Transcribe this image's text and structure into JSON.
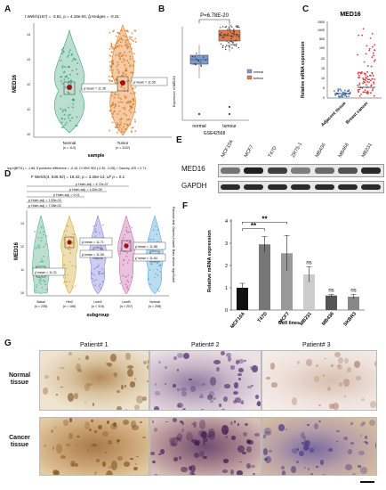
{
  "panels": {
    "A": {
      "letter": "A",
      "stat_text": "t Welch(157) = -3.61, p = 4.18e-04, ĝ Hedges = -0.31",
      "footer_text": "log e(BF01) = -1.66, δ̂ posterior difference = -0.18, CI 95% HDI [-0.30, -0.05], r Cauchy JZS = 0.71",
      "ylabel": "MED16",
      "xlabel": "sample",
      "groups": [
        {
          "name": "Normal",
          "n": "(n = 113)",
          "mean_label": "μ̂ mean = 11.36",
          "color": "#3aa37a"
        },
        {
          "name": "Tumor",
          "n": "(n = 1102)",
          "mean_label": "μ̂ mean = 11.55",
          "color": "#e07b1a"
        }
      ],
      "yticks": [
        "10",
        "11",
        "12",
        "13",
        "14"
      ]
    },
    "B": {
      "letter": "B",
      "pvalue": "P=6.78E-20",
      "ylabel": "Expression of MED16",
      "xlabel": "GSE42568",
      "categories": [
        "normal",
        "tumour"
      ],
      "legend": [
        "normal",
        "tumour"
      ],
      "colors": {
        "normal": "#7b9ccf",
        "tumour": "#e07b4a"
      }
    },
    "C": {
      "letter": "C",
      "title": "MED16",
      "ylabel": "Relative mRNA expression",
      "yticks": [
        "0",
        "5",
        "10",
        "15",
        "20",
        "100",
        "500",
        "1000",
        "1500"
      ],
      "categories": [
        "Adjacent tissue",
        "Breast cancer"
      ],
      "colors": {
        "adjacent": "#4a78c8",
        "cancer": "#d83a3a"
      }
    },
    "D": {
      "letter": "D",
      "stat_text": "F Welch(4, 546.92) = 18.42, p = 3.26e-14, ω̂² p = 0.1",
      "ylabel": "MED16",
      "xlabel": "subgroup",
      "side_label": "Pairwise test: Games-Howell; Bars shown: significant",
      "pvalue_labels": [
        "p Holm-adj. = 4.72e-07",
        "p Holm-adj. = 1.62e-05",
        "p Holm-adj. = 0.01",
        "p Holm-adj. = 1.53e-03",
        "p Holm-adj. = 7.08e-03"
      ],
      "means": [
        "μ̂ mean = 11.21",
        "μ̂ mean = 11.71",
        "μ̂ mean = 11.55",
        "μ̂ mean = 11.58",
        "μ̂ mean = 11.54"
      ],
      "groups": [
        {
          "name": "Basal",
          "n": "(n = 235)",
          "color": "#3aa37a"
        },
        {
          "name": "Her2",
          "n": "(n = 156)",
          "color": "#d0a020"
        },
        {
          "name": "LumA",
          "n": "(n = 319)",
          "color": "#6f6fd0"
        },
        {
          "name": "LumB",
          "n": "(n = 207)",
          "color": "#c050a0"
        },
        {
          "name": "Normal",
          "n": "(n = 208)",
          "color": "#3a9ad0"
        }
      ],
      "yticks": [
        "10",
        "11",
        "12",
        "13"
      ]
    },
    "E": {
      "letter": "E",
      "lanes": [
        "MCF10A",
        "MCF7",
        "T47D",
        "ZR75-1",
        "MB436",
        "MB468",
        "MB231"
      ],
      "bands": [
        "MED16",
        "GAPDH"
      ]
    },
    "F": {
      "letter": "F",
      "ylabel": "Relative mRNA expression",
      "xlabel": "Cell lines",
      "yticks": [
        "0",
        "1",
        "2",
        "3",
        "4"
      ],
      "sig_labels": [
        "**",
        "**",
        "ns",
        "ns",
        "ns"
      ]
    },
    "G": {
      "letter": "G",
      "patients": [
        "Patient# 1",
        "Patient# 2",
        "Patient# 3"
      ],
      "rows": [
        "Normal tissue",
        "Cancer tissue"
      ]
    }
  },
  "chart_data": [
    {
      "type": "bar",
      "panel": "F",
      "categories": [
        "MCF10A",
        "T47D",
        "MCF7",
        "MB231",
        "MB436",
        "SKBR3"
      ],
      "values": [
        1.0,
        2.95,
        2.55,
        1.6,
        0.65,
        0.6
      ],
      "errors": [
        0.2,
        0.35,
        0.8,
        0.35,
        0.05,
        0.1
      ],
      "colors": [
        "#111111",
        "#777777",
        "#999999",
        "#cccccc",
        "#555555",
        "#888888"
      ],
      "ylabel": "Relative mRNA expression",
      "xlabel": "Cell lines",
      "ylim": [
        0,
        4
      ]
    }
  ]
}
